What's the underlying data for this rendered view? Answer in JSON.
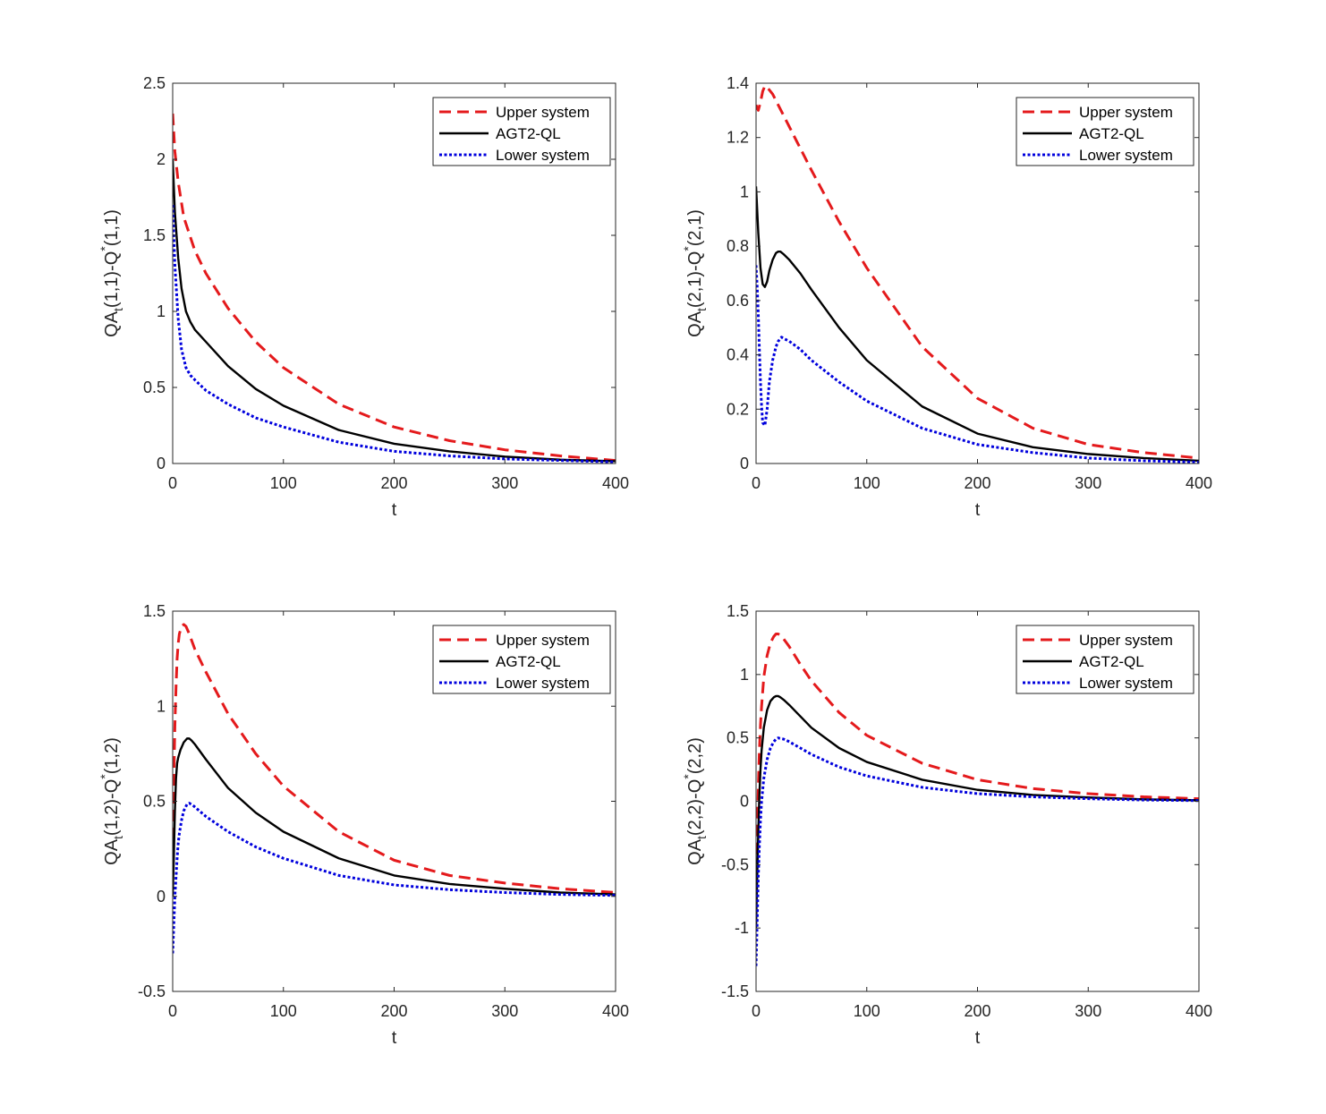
{
  "figure": {
    "legend_labels": [
      "Upper system",
      "AGT2-QL",
      "Lower system"
    ]
  },
  "colors": {
    "upper": "#e41a1c",
    "agt": "#000000",
    "lower": "#0000dd",
    "axis": "#262626"
  },
  "chart_data": [
    {
      "type": "line",
      "xlabel": "t",
      "ylabel_main": "QA",
      "ylabel_sub": "t",
      "ylabel_mid": "(1,1)-Q",
      "ylabel_sup": "*",
      "ylabel_end": "(1,1)",
      "xlim": [
        0,
        400
      ],
      "ylim": [
        0,
        2.5
      ],
      "xticks": [
        0,
        100,
        200,
        300,
        400
      ],
      "yticks": [
        0,
        0.5,
        1,
        1.5,
        2,
        2.5
      ],
      "xtick_labels": [
        "0",
        "100",
        "200",
        "300",
        "400"
      ],
      "ytick_labels": [
        "0",
        "0.5",
        "1",
        "1.5",
        "2",
        "2.5"
      ],
      "legend": "top-right",
      "series": [
        {
          "name": "Upper system",
          "style": "dashed",
          "x": [
            0,
            2,
            5,
            10,
            20,
            30,
            50,
            75,
            100,
            150,
            200,
            250,
            300,
            350,
            400
          ],
          "y": [
            2.3,
            2.05,
            1.85,
            1.62,
            1.4,
            1.25,
            1.02,
            0.8,
            0.63,
            0.39,
            0.24,
            0.15,
            0.09,
            0.05,
            0.02
          ]
        },
        {
          "name": "AGT2-QL",
          "style": "solid",
          "x": [
            0,
            2,
            5,
            8,
            12,
            16,
            20,
            30,
            50,
            75,
            100,
            150,
            200,
            250,
            300,
            350,
            400
          ],
          "y": [
            2.0,
            1.65,
            1.35,
            1.15,
            1.0,
            0.93,
            0.88,
            0.8,
            0.64,
            0.49,
            0.38,
            0.22,
            0.13,
            0.08,
            0.045,
            0.025,
            0.015
          ]
        },
        {
          "name": "Lower system",
          "style": "dotted",
          "x": [
            0,
            2,
            5,
            8,
            12,
            16,
            20,
            30,
            50,
            75,
            100,
            150,
            200,
            250,
            300,
            350,
            400
          ],
          "y": [
            1.7,
            1.3,
            0.95,
            0.75,
            0.63,
            0.58,
            0.55,
            0.48,
            0.39,
            0.3,
            0.24,
            0.14,
            0.08,
            0.05,
            0.03,
            0.02,
            0.01
          ]
        }
      ]
    },
    {
      "type": "line",
      "xlabel": "t",
      "ylabel_main": "QA",
      "ylabel_sub": "t",
      "ylabel_mid": "(2,1)-Q",
      "ylabel_sup": "*",
      "ylabel_end": "(2,1)",
      "xlim": [
        0,
        400
      ],
      "ylim": [
        0,
        1.4
      ],
      "xticks": [
        0,
        100,
        200,
        300,
        400
      ],
      "yticks": [
        0,
        0.2,
        0.4,
        0.6,
        0.8,
        1,
        1.2,
        1.4
      ],
      "xtick_labels": [
        "0",
        "100",
        "200",
        "300",
        "400"
      ],
      "ytick_labels": [
        "0",
        "0.2",
        "0.4",
        "0.6",
        "0.8",
        "1",
        "1.2",
        "1.4"
      ],
      "legend": "top-right",
      "series": [
        {
          "name": "Upper system",
          "style": "dashed",
          "x": [
            0,
            2,
            4,
            6,
            8,
            10,
            15,
            20,
            30,
            50,
            75,
            100,
            150,
            200,
            250,
            300,
            350,
            400
          ],
          "y": [
            1.32,
            1.3,
            1.33,
            1.37,
            1.39,
            1.385,
            1.36,
            1.32,
            1.24,
            1.08,
            0.89,
            0.72,
            0.43,
            0.24,
            0.13,
            0.07,
            0.04,
            0.02
          ]
        },
        {
          "name": "AGT2-QL",
          "style": "solid",
          "x": [
            0,
            2,
            4,
            6,
            8,
            10,
            12,
            15,
            18,
            20,
            22,
            25,
            30,
            40,
            50,
            75,
            100,
            150,
            200,
            250,
            300,
            350,
            400
          ],
          "y": [
            1.02,
            0.85,
            0.72,
            0.66,
            0.65,
            0.67,
            0.71,
            0.75,
            0.775,
            0.78,
            0.78,
            0.77,
            0.75,
            0.7,
            0.64,
            0.5,
            0.38,
            0.21,
            0.11,
            0.06,
            0.035,
            0.02,
            0.01
          ]
        },
        {
          "name": "Lower system",
          "style": "dotted",
          "x": [
            0,
            1,
            2,
            3,
            4,
            5,
            6,
            8,
            10,
            12,
            15,
            18,
            20,
            23,
            25,
            30,
            40,
            50,
            75,
            100,
            150,
            200,
            250,
            300,
            350,
            400
          ],
          "y": [
            0.73,
            0.65,
            0.55,
            0.42,
            0.3,
            0.21,
            0.15,
            0.14,
            0.2,
            0.3,
            0.38,
            0.43,
            0.45,
            0.465,
            0.46,
            0.45,
            0.42,
            0.38,
            0.3,
            0.23,
            0.13,
            0.07,
            0.04,
            0.02,
            0.01,
            0.005
          ]
        }
      ]
    },
    {
      "type": "line",
      "xlabel": "t",
      "ylabel_main": "QA",
      "ylabel_sub": "t",
      "ylabel_mid": "(1,2)-Q",
      "ylabel_sup": "*",
      "ylabel_end": "(1,2)",
      "xlim": [
        0,
        400
      ],
      "ylim": [
        -0.5,
        1.5
      ],
      "xticks": [
        0,
        100,
        200,
        300,
        400
      ],
      "yticks": [
        -0.5,
        0,
        0.5,
        1,
        1.5
      ],
      "xtick_labels": [
        "0",
        "100",
        "200",
        "300",
        "400"
      ],
      "ytick_labels": [
        "-0.5",
        "0",
        "0.5",
        "1",
        "1.5"
      ],
      "legend": "top-right",
      "series": [
        {
          "name": "Upper system",
          "style": "dashed",
          "x": [
            0,
            1,
            2,
            3,
            4,
            5,
            6,
            8,
            10,
            12,
            15,
            20,
            30,
            50,
            75,
            100,
            150,
            200,
            250,
            300,
            350,
            400
          ],
          "y": [
            0.3,
            0.6,
            0.9,
            1.1,
            1.25,
            1.33,
            1.38,
            1.42,
            1.43,
            1.42,
            1.38,
            1.3,
            1.18,
            0.96,
            0.75,
            0.58,
            0.34,
            0.19,
            0.11,
            0.07,
            0.04,
            0.02
          ]
        },
        {
          "name": "AGT2-QL",
          "style": "solid",
          "x": [
            0,
            1,
            2,
            3,
            4,
            5,
            7,
            10,
            13,
            15,
            17,
            20,
            30,
            50,
            75,
            100,
            150,
            200,
            250,
            300,
            350,
            400
          ],
          "y": [
            0.0,
            0.2,
            0.45,
            0.62,
            0.7,
            0.73,
            0.77,
            0.81,
            0.83,
            0.83,
            0.82,
            0.8,
            0.72,
            0.57,
            0.44,
            0.34,
            0.2,
            0.11,
            0.065,
            0.04,
            0.02,
            0.01
          ]
        },
        {
          "name": "Lower system",
          "style": "dotted",
          "x": [
            0,
            1,
            2,
            3,
            4,
            5,
            6,
            8,
            10,
            13,
            15,
            18,
            20,
            30,
            50,
            75,
            100,
            150,
            200,
            250,
            300,
            350,
            400
          ],
          "y": [
            -0.3,
            -0.15,
            0.0,
            0.1,
            0.2,
            0.28,
            0.33,
            0.4,
            0.45,
            0.485,
            0.49,
            0.48,
            0.47,
            0.42,
            0.34,
            0.26,
            0.2,
            0.11,
            0.06,
            0.035,
            0.02,
            0.01,
            0.005
          ]
        }
      ]
    },
    {
      "type": "line",
      "xlabel": "t",
      "ylabel_main": "QA",
      "ylabel_sub": "t",
      "ylabel_mid": "(2,2)-Q",
      "ylabel_sup": "*",
      "ylabel_end": "(2,2)",
      "xlim": [
        0,
        400
      ],
      "ylim": [
        -1.5,
        1.5
      ],
      "xticks": [
        0,
        100,
        200,
        300,
        400
      ],
      "yticks": [
        -1.5,
        -1,
        -0.5,
        0,
        0.5,
        1,
        1.5
      ],
      "xtick_labels": [
        "0",
        "100",
        "200",
        "300",
        "400"
      ],
      "ytick_labels": [
        "-1.5",
        "-1",
        "-0.5",
        "0",
        "0.5",
        "1",
        "1.5"
      ],
      "legend": "top-right",
      "series": [
        {
          "name": "Upper system",
          "style": "dashed",
          "x": [
            0,
            1,
            2,
            3,
            4,
            5,
            7,
            10,
            13,
            16,
            18,
            20,
            22,
            25,
            30,
            40,
            50,
            75,
            100,
            150,
            200,
            250,
            300,
            350,
            400
          ],
          "y": [
            -0.7,
            -0.3,
            0.1,
            0.4,
            0.6,
            0.75,
            0.98,
            1.15,
            1.25,
            1.3,
            1.32,
            1.32,
            1.31,
            1.28,
            1.22,
            1.08,
            0.95,
            0.7,
            0.52,
            0.3,
            0.17,
            0.1,
            0.06,
            0.035,
            0.02
          ]
        },
        {
          "name": "AGT2-QL",
          "style": "solid",
          "x": [
            0,
            1,
            2,
            3,
            4,
            5,
            7,
            10,
            13,
            16,
            18,
            20,
            22,
            25,
            30,
            40,
            50,
            75,
            100,
            150,
            200,
            250,
            300,
            350,
            400
          ],
          "y": [
            -1.0,
            -0.6,
            -0.25,
            0.05,
            0.25,
            0.4,
            0.58,
            0.72,
            0.79,
            0.82,
            0.83,
            0.83,
            0.82,
            0.8,
            0.76,
            0.67,
            0.58,
            0.42,
            0.31,
            0.17,
            0.09,
            0.05,
            0.03,
            0.015,
            0.008
          ]
        },
        {
          "name": "Lower system",
          "style": "dotted",
          "x": [
            0,
            1,
            2,
            3,
            4,
            5,
            7,
            10,
            13,
            16,
            18,
            20,
            22,
            25,
            30,
            40,
            50,
            75,
            100,
            150,
            200,
            250,
            300,
            350,
            400
          ],
          "y": [
            -1.3,
            -0.95,
            -0.6,
            -0.35,
            -0.15,
            0.0,
            0.18,
            0.33,
            0.42,
            0.47,
            0.49,
            0.5,
            0.495,
            0.49,
            0.47,
            0.42,
            0.37,
            0.27,
            0.2,
            0.11,
            0.06,
            0.035,
            0.02,
            0.01,
            0.005
          ]
        }
      ]
    }
  ]
}
